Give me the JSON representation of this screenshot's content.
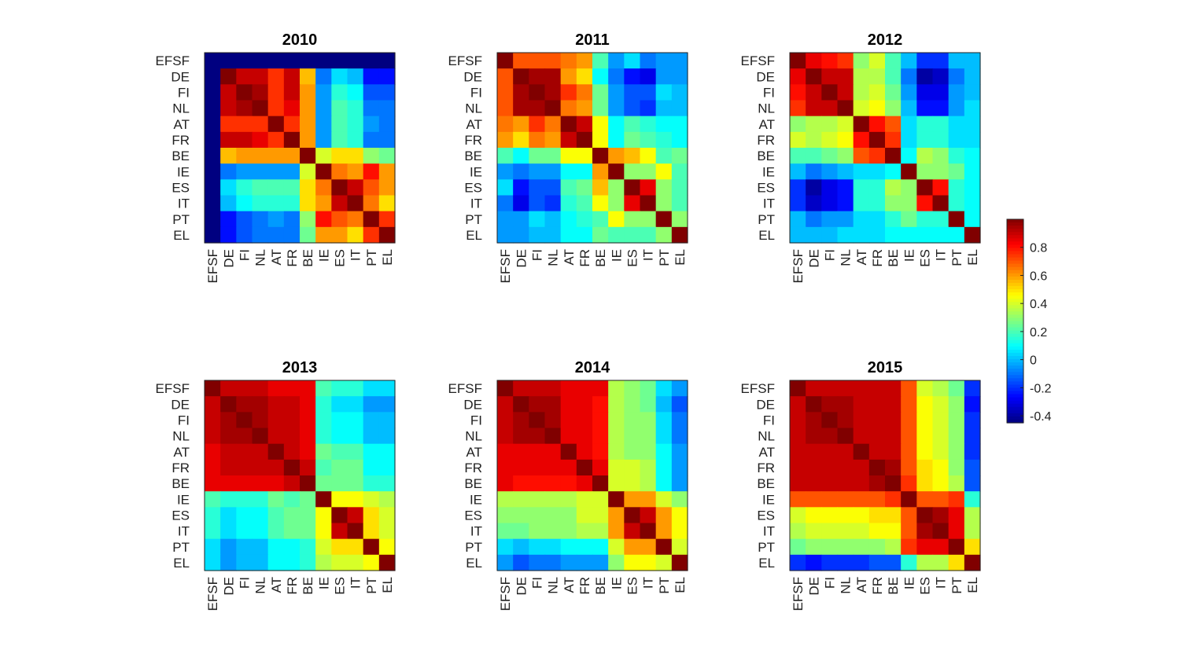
{
  "chart_data": {
    "type": "heatmap",
    "labels": [
      "EFSF",
      "DE",
      "FI",
      "NL",
      "AT",
      "FR",
      "BE",
      "IE",
      "ES",
      "IT",
      "PT",
      "EL"
    ],
    "colormap": "jet",
    "clim": [
      -0.45,
      1.0
    ],
    "colorbar": {
      "ticks": [
        0.8,
        0.6,
        0.4,
        0.2,
        0,
        -0.2,
        -0.4
      ],
      "tick_labels": [
        "0.8",
        "0.6",
        "0.4",
        "0.2",
        "0",
        "-0.2",
        "-0.4"
      ]
    },
    "panels": [
      {
        "title": "2010",
        "matrix": [
          [
            -0.45,
            -0.45,
            -0.45,
            -0.45,
            -0.45,
            -0.45,
            -0.45,
            -0.45,
            -0.45,
            -0.45,
            -0.45,
            -0.45
          ],
          [
            -0.45,
            1.0,
            0.9,
            0.9,
            0.75,
            0.9,
            0.55,
            -0.1,
            0.05,
            0.0,
            -0.25,
            -0.25
          ],
          [
            -0.45,
            0.9,
            1.0,
            0.95,
            0.75,
            0.9,
            0.6,
            -0.05,
            0.15,
            0.1,
            -0.15,
            -0.15
          ],
          [
            -0.45,
            0.9,
            0.95,
            1.0,
            0.75,
            0.85,
            0.6,
            -0.05,
            0.2,
            0.15,
            -0.1,
            -0.1
          ],
          [
            -0.45,
            0.75,
            0.75,
            0.75,
            1.0,
            0.75,
            0.6,
            -0.05,
            0.2,
            0.15,
            -0.05,
            -0.1
          ],
          [
            -0.45,
            0.9,
            0.9,
            0.85,
            0.75,
            1.0,
            0.6,
            -0.05,
            0.2,
            0.15,
            -0.1,
            -0.1
          ],
          [
            -0.45,
            0.55,
            0.6,
            0.6,
            0.6,
            0.6,
            1.0,
            0.4,
            0.5,
            0.5,
            0.3,
            0.25
          ],
          [
            -0.45,
            -0.1,
            -0.05,
            -0.05,
            -0.05,
            -0.05,
            0.4,
            1.0,
            0.65,
            0.6,
            0.8,
            0.6
          ],
          [
            -0.45,
            0.05,
            0.15,
            0.2,
            0.2,
            0.2,
            0.5,
            0.65,
            1.0,
            0.9,
            0.7,
            0.6
          ],
          [
            -0.45,
            0.0,
            0.1,
            0.15,
            0.15,
            0.15,
            0.5,
            0.6,
            0.9,
            1.0,
            0.65,
            0.5
          ],
          [
            -0.45,
            -0.25,
            -0.15,
            -0.1,
            -0.05,
            -0.1,
            0.3,
            0.8,
            0.7,
            0.65,
            1.0,
            0.75
          ],
          [
            -0.45,
            -0.25,
            -0.15,
            -0.1,
            -0.1,
            -0.1,
            0.25,
            0.6,
            0.6,
            0.5,
            0.75,
            1.0
          ]
        ]
      },
      {
        "title": "2011",
        "matrix": [
          [
            1.0,
            0.7,
            0.7,
            0.7,
            0.65,
            0.6,
            0.2,
            -0.05,
            0.05,
            -0.1,
            -0.05,
            -0.05
          ],
          [
            0.7,
            1.0,
            0.95,
            0.95,
            0.6,
            0.5,
            0.1,
            -0.1,
            -0.25,
            -0.3,
            -0.05,
            -0.05
          ],
          [
            0.7,
            0.95,
            1.0,
            0.95,
            0.75,
            0.65,
            0.25,
            -0.05,
            -0.15,
            -0.15,
            0.05,
            0.0
          ],
          [
            0.7,
            0.95,
            0.95,
            1.0,
            0.65,
            0.6,
            0.25,
            -0.05,
            -0.15,
            -0.2,
            0.0,
            0.0
          ],
          [
            0.65,
            0.6,
            0.75,
            0.65,
            1.0,
            0.9,
            0.45,
            0.1,
            0.2,
            0.15,
            0.1,
            0.1
          ],
          [
            0.6,
            0.5,
            0.65,
            0.6,
            0.9,
            1.0,
            0.45,
            0.1,
            0.25,
            0.2,
            0.15,
            0.1
          ],
          [
            0.2,
            0.1,
            0.25,
            0.25,
            0.45,
            0.45,
            1.0,
            0.6,
            0.55,
            0.45,
            0.2,
            0.25
          ],
          [
            -0.05,
            -0.1,
            -0.05,
            -0.05,
            0.1,
            0.1,
            0.6,
            1.0,
            0.3,
            0.3,
            0.45,
            0.2
          ],
          [
            0.05,
            -0.25,
            -0.15,
            -0.15,
            0.2,
            0.25,
            0.55,
            0.3,
            1.0,
            0.85,
            0.3,
            0.2
          ],
          [
            -0.1,
            -0.3,
            -0.15,
            -0.2,
            0.15,
            0.2,
            0.45,
            0.3,
            0.85,
            1.0,
            0.3,
            0.2
          ],
          [
            -0.05,
            -0.05,
            0.05,
            0.0,
            0.1,
            0.15,
            0.2,
            0.45,
            0.3,
            0.3,
            1.0,
            0.3
          ],
          [
            -0.05,
            -0.05,
            0.0,
            0.0,
            0.1,
            0.1,
            0.25,
            0.2,
            0.2,
            0.2,
            0.3,
            1.0
          ]
        ]
      },
      {
        "title": "2012",
        "matrix": [
          [
            1.0,
            0.85,
            0.8,
            0.75,
            0.3,
            0.4,
            0.2,
            0.0,
            -0.2,
            -0.2,
            0.0,
            0.0
          ],
          [
            0.85,
            1.0,
            0.9,
            0.9,
            0.35,
            0.35,
            0.2,
            -0.1,
            -0.4,
            -0.35,
            -0.1,
            0.0
          ],
          [
            0.8,
            0.9,
            1.0,
            0.9,
            0.35,
            0.4,
            0.25,
            -0.05,
            -0.3,
            -0.3,
            -0.05,
            0.0
          ],
          [
            0.75,
            0.9,
            0.9,
            1.0,
            0.4,
            0.45,
            0.3,
            0.0,
            -0.25,
            -0.25,
            -0.05,
            0.05
          ],
          [
            0.3,
            0.35,
            0.35,
            0.4,
            1.0,
            0.8,
            0.7,
            0.05,
            0.15,
            0.15,
            0.05,
            0.05
          ],
          [
            0.4,
            0.35,
            0.4,
            0.45,
            0.8,
            1.0,
            0.75,
            0.05,
            0.15,
            0.15,
            0.05,
            0.05
          ],
          [
            0.2,
            0.2,
            0.25,
            0.3,
            0.7,
            0.75,
            1.0,
            0.1,
            0.35,
            0.3,
            0.15,
            0.1
          ],
          [
            0.0,
            -0.1,
            -0.05,
            0.0,
            0.05,
            0.05,
            0.1,
            1.0,
            0.3,
            0.3,
            0.25,
            0.1
          ],
          [
            -0.2,
            -0.4,
            -0.3,
            -0.25,
            0.15,
            0.15,
            0.35,
            0.3,
            1.0,
            0.8,
            0.15,
            0.1
          ],
          [
            -0.2,
            -0.35,
            -0.3,
            -0.25,
            0.15,
            0.15,
            0.3,
            0.3,
            0.8,
            1.0,
            0.15,
            0.1
          ],
          [
            0.0,
            -0.1,
            -0.05,
            -0.05,
            0.05,
            0.05,
            0.15,
            0.25,
            0.15,
            0.15,
            1.0,
            0.1
          ],
          [
            0.0,
            0.0,
            0.0,
            0.05,
            0.05,
            0.05,
            0.1,
            0.1,
            0.1,
            0.1,
            0.1,
            1.0
          ]
        ]
      },
      {
        "title": "2013",
        "matrix": [
          [
            1.0,
            0.9,
            0.9,
            0.9,
            0.85,
            0.85,
            0.85,
            0.2,
            0.15,
            0.15,
            0.05,
            0.05
          ],
          [
            0.9,
            1.0,
            0.95,
            0.95,
            0.9,
            0.9,
            0.85,
            0.15,
            0.05,
            0.05,
            -0.05,
            -0.05
          ],
          [
            0.9,
            0.95,
            1.0,
            0.95,
            0.9,
            0.9,
            0.85,
            0.15,
            0.1,
            0.1,
            0.0,
            0.0
          ],
          [
            0.9,
            0.95,
            0.95,
            1.0,
            0.9,
            0.9,
            0.85,
            0.15,
            0.1,
            0.1,
            0.0,
            0.0
          ],
          [
            0.85,
            0.9,
            0.9,
            0.9,
            1.0,
            0.9,
            0.85,
            0.25,
            0.2,
            0.2,
            0.1,
            0.1
          ],
          [
            0.85,
            0.9,
            0.9,
            0.9,
            0.9,
            1.0,
            0.9,
            0.2,
            0.25,
            0.25,
            0.1,
            0.1
          ],
          [
            0.85,
            0.85,
            0.85,
            0.85,
            0.85,
            0.9,
            1.0,
            0.25,
            0.25,
            0.25,
            0.15,
            0.15
          ],
          [
            0.2,
            0.15,
            0.15,
            0.15,
            0.25,
            0.2,
            0.25,
            1.0,
            0.45,
            0.45,
            0.4,
            0.35
          ],
          [
            0.15,
            0.05,
            0.1,
            0.1,
            0.2,
            0.25,
            0.25,
            0.45,
            1.0,
            0.9,
            0.5,
            0.4
          ],
          [
            0.15,
            0.05,
            0.1,
            0.1,
            0.2,
            0.25,
            0.25,
            0.45,
            0.9,
            1.0,
            0.5,
            0.4
          ],
          [
            0.05,
            -0.05,
            0.0,
            0.0,
            0.1,
            0.1,
            0.15,
            0.4,
            0.5,
            0.5,
            1.0,
            0.45
          ],
          [
            0.05,
            -0.05,
            0.0,
            0.0,
            0.1,
            0.1,
            0.15,
            0.35,
            0.4,
            0.4,
            0.45,
            1.0
          ]
        ]
      },
      {
        "title": "2014",
        "matrix": [
          [
            1.0,
            0.9,
            0.9,
            0.9,
            0.85,
            0.85,
            0.85,
            0.35,
            0.3,
            0.25,
            0.05,
            -0.05
          ],
          [
            0.9,
            1.0,
            0.95,
            0.95,
            0.85,
            0.85,
            0.8,
            0.35,
            0.3,
            0.25,
            0.0,
            -0.15
          ],
          [
            0.9,
            0.95,
            1.0,
            0.95,
            0.85,
            0.85,
            0.8,
            0.35,
            0.3,
            0.3,
            0.05,
            -0.1
          ],
          [
            0.9,
            0.95,
            0.95,
            1.0,
            0.85,
            0.85,
            0.8,
            0.35,
            0.3,
            0.3,
            0.05,
            -0.1
          ],
          [
            0.85,
            0.85,
            0.85,
            0.85,
            1.0,
            0.85,
            0.8,
            0.35,
            0.3,
            0.3,
            0.1,
            -0.05
          ],
          [
            0.85,
            0.85,
            0.85,
            0.85,
            0.85,
            1.0,
            0.85,
            0.4,
            0.4,
            0.35,
            0.1,
            -0.05
          ],
          [
            0.85,
            0.8,
            0.8,
            0.8,
            0.8,
            0.85,
            1.0,
            0.4,
            0.4,
            0.35,
            0.1,
            -0.05
          ],
          [
            0.35,
            0.35,
            0.35,
            0.35,
            0.35,
            0.4,
            0.4,
            1.0,
            0.6,
            0.6,
            0.4,
            0.3
          ],
          [
            0.3,
            0.3,
            0.3,
            0.3,
            0.3,
            0.4,
            0.4,
            0.6,
            1.0,
            0.9,
            0.6,
            0.45
          ],
          [
            0.25,
            0.25,
            0.3,
            0.3,
            0.3,
            0.35,
            0.35,
            0.6,
            0.9,
            1.0,
            0.6,
            0.45
          ],
          [
            0.05,
            0.0,
            0.05,
            0.05,
            0.1,
            0.1,
            0.1,
            0.4,
            0.6,
            0.6,
            1.0,
            0.4
          ],
          [
            -0.05,
            -0.15,
            -0.1,
            -0.1,
            -0.05,
            -0.05,
            -0.05,
            0.3,
            0.45,
            0.45,
            0.4,
            1.0
          ]
        ]
      },
      {
        "title": "2015",
        "matrix": [
          [
            1.0,
            0.9,
            0.9,
            0.9,
            0.9,
            0.9,
            0.9,
            0.7,
            0.4,
            0.35,
            0.25,
            -0.2
          ],
          [
            0.9,
            1.0,
            0.95,
            0.95,
            0.9,
            0.9,
            0.9,
            0.7,
            0.45,
            0.4,
            0.3,
            -0.25
          ],
          [
            0.9,
            0.95,
            1.0,
            0.95,
            0.9,
            0.9,
            0.9,
            0.7,
            0.45,
            0.4,
            0.3,
            -0.2
          ],
          [
            0.9,
            0.95,
            0.95,
            1.0,
            0.9,
            0.9,
            0.9,
            0.7,
            0.45,
            0.4,
            0.3,
            -0.2
          ],
          [
            0.9,
            0.9,
            0.9,
            0.9,
            1.0,
            0.9,
            0.9,
            0.7,
            0.45,
            0.4,
            0.3,
            -0.2
          ],
          [
            0.9,
            0.9,
            0.9,
            0.9,
            0.9,
            1.0,
            0.95,
            0.7,
            0.5,
            0.45,
            0.3,
            -0.15
          ],
          [
            0.9,
            0.9,
            0.9,
            0.9,
            0.9,
            0.95,
            1.0,
            0.75,
            0.5,
            0.45,
            0.35,
            -0.15
          ],
          [
            0.7,
            0.7,
            0.7,
            0.7,
            0.7,
            0.7,
            0.75,
            1.0,
            0.7,
            0.7,
            0.75,
            0.15
          ],
          [
            0.4,
            0.45,
            0.45,
            0.45,
            0.45,
            0.5,
            0.5,
            0.7,
            1.0,
            0.95,
            0.85,
            0.35
          ],
          [
            0.35,
            0.4,
            0.4,
            0.4,
            0.4,
            0.45,
            0.45,
            0.7,
            0.95,
            1.0,
            0.85,
            0.35
          ],
          [
            0.25,
            0.3,
            0.3,
            0.3,
            0.3,
            0.3,
            0.35,
            0.75,
            0.85,
            0.85,
            1.0,
            0.5
          ],
          [
            -0.2,
            -0.25,
            -0.2,
            -0.2,
            -0.2,
            -0.15,
            -0.15,
            0.15,
            0.35,
            0.35,
            0.5,
            1.0
          ]
        ]
      }
    ]
  }
}
